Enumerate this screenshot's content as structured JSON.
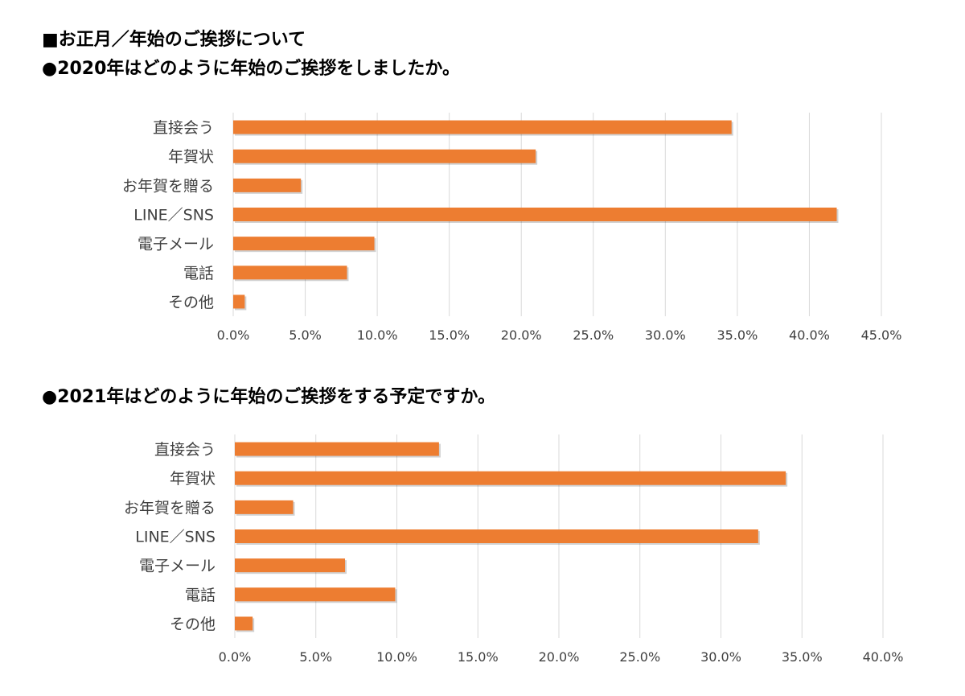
{
  "headings": {
    "section": "■お正月／年始のご挨拶について",
    "q1": "●2020年はどのように年始のご挨拶をしましたか。",
    "q2": "●2021年はどのように年始のご挨拶をする予定ですか。"
  },
  "colors": {
    "bar": "#ED7D31",
    "grid": "#D9D9D9",
    "text": "#404040"
  },
  "chart_data": [
    {
      "type": "bar",
      "orientation": "horizontal",
      "categories": [
        "直接会う",
        "年賀状",
        "お年賀を贈る",
        "LINE／SNS",
        "電子メール",
        "電話",
        "その他"
      ],
      "values": [
        34.6,
        21.0,
        4.7,
        41.9,
        9.8,
        7.9,
        0.8
      ],
      "xlim": [
        0,
        45
      ],
      "xticks": [
        "0.0%",
        "5.0%",
        "10.0%",
        "15.0%",
        "20.0%",
        "25.0%",
        "30.0%",
        "35.0%",
        "40.0%",
        "45.0%"
      ],
      "grid": true
    },
    {
      "type": "bar",
      "orientation": "horizontal",
      "categories": [
        "直接会う",
        "年賀状",
        "お年賀を贈る",
        "LINE／SNS",
        "電子メール",
        "電話",
        "その他"
      ],
      "values": [
        12.6,
        34.0,
        3.6,
        32.3,
        6.8,
        9.9,
        1.1
      ],
      "xlim": [
        0,
        40
      ],
      "xticks": [
        "0.0%",
        "5.0%",
        "10.0%",
        "15.0%",
        "20.0%",
        "25.0%",
        "30.0%",
        "35.0%",
        "40.0%"
      ],
      "grid": true
    }
  ]
}
